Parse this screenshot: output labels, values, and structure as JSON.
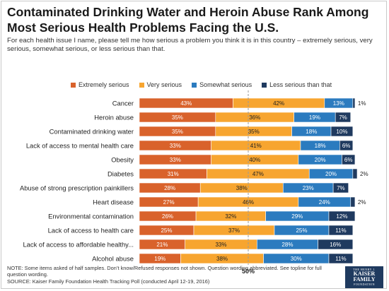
{
  "title": "Contaminated Drinking Water and Heroin Abuse Rank Among Most Serious Health Problems Facing the U.S.",
  "subtitle": "For each health issue I name, please tell me how serious a problem you think it is in this country – extremely serious, very serious, somewhat serious, or less serious than that.",
  "note": "NOTE: Some items asked of half samples. Don’t know/Refused responses not shown. Question wording abbreviated. See topline for full question wording.",
  "source": "SOURCE: Kaiser Family Foundation Health Tracking Poll (conducted April 12-19, 2016)",
  "logo": {
    "line1": "THE HENRY J.",
    "line2": "KAISER",
    "line3": "FAMILY",
    "line4": "FOUNDATION"
  },
  "chart_data": {
    "type": "bar",
    "orientation": "horizontal",
    "stacked": true,
    "xlim": [
      0,
      100
    ],
    "reference_line": {
      "value": 50,
      "label": "50%"
    },
    "legend_position": "top",
    "categories": [
      "Cancer",
      "Heroin abuse",
      "Contaminated drinking water",
      "Lack of access to mental health care",
      "Obesity",
      "Diabetes",
      "Abuse of strong prescription painkillers",
      "Heart disease",
      "Environmental contamination",
      "Lack of access to health care",
      "Lack of access to affordable healthy...",
      "Alcohol abuse"
    ],
    "series": [
      {
        "name": "Extremely serious",
        "color": "#d9622b",
        "values": [
          43,
          35,
          35,
          33,
          33,
          31,
          28,
          27,
          26,
          25,
          21,
          19
        ]
      },
      {
        "name": "Very serious",
        "color": "#f7a530",
        "values": [
          42,
          36,
          35,
          41,
          40,
          47,
          38,
          46,
          32,
          37,
          33,
          38
        ]
      },
      {
        "name": "Somewhat serious",
        "color": "#2b7bbf",
        "values": [
          13,
          19,
          18,
          18,
          20,
          20,
          23,
          24,
          29,
          25,
          28,
          30
        ]
      },
      {
        "name": "Less serious than that",
        "color": "#1f3a5f",
        "values": [
          1,
          7,
          10,
          6,
          6,
          2,
          7,
          2,
          12,
          11,
          16,
          11
        ]
      }
    ]
  }
}
